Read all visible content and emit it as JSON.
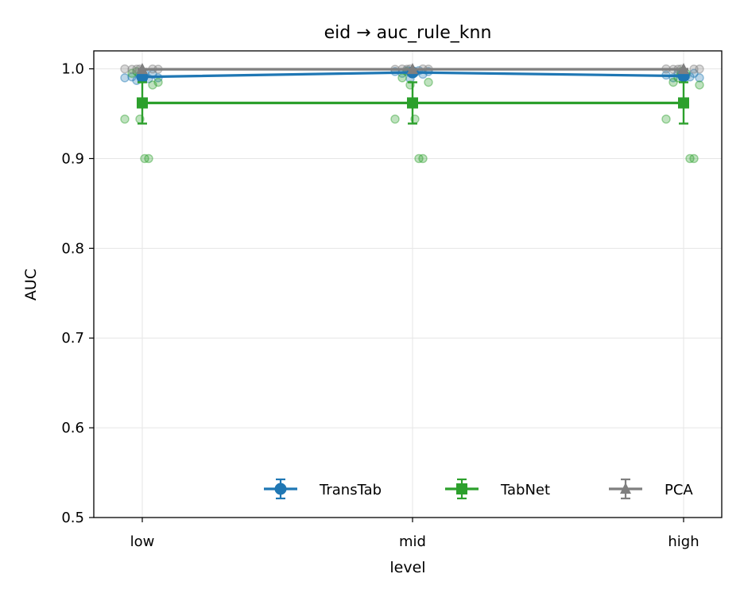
{
  "chart_data": {
    "type": "line",
    "title": "eid → auc_rule_knn",
    "xlabel": "level",
    "ylabel": "AUC",
    "categories": [
      "low",
      "mid",
      "high"
    ],
    "ylim": [
      0.5,
      1.02
    ],
    "yticks": [
      "0.5",
      "0.6",
      "0.7",
      "0.8",
      "0.9",
      "1.0"
    ],
    "grid": true,
    "legend_position": "bottom-right",
    "series": [
      {
        "name": "TransTab",
        "color": "#1f77b4",
        "marker": "circle",
        "values": [
          0.991,
          0.996,
          0.992
        ],
        "err": [
          0.004,
          0.002,
          0.004
        ],
        "points": [
          [
            0.99,
            0.991,
            0.987,
            0.993,
            0.995,
            0.989,
            0.994,
            0.99
          ],
          [
            0.997,
            0.995,
            0.998,
            0.989,
            0.996,
            0.998,
            0.994,
            0.997
          ],
          [
            0.993,
            0.99,
            0.995,
            0.994,
            0.992,
            0.991,
            0.995,
            0.99
          ]
        ]
      },
      {
        "name": "TabNet",
        "color": "#2ca02c",
        "marker": "square",
        "values": [
          0.962,
          0.962,
          0.962
        ],
        "err": [
          0.023,
          0.023,
          0.023
        ],
        "points": [
          [
            0.944,
            0.9,
            0.9,
            0.982,
            0.985,
            0.944,
            0.995,
            0.997
          ],
          [
            0.982,
            0.944,
            0.9,
            0.9,
            0.985,
            0.944,
            0.99,
            0.997
          ],
          [
            0.997,
            0.995,
            0.9,
            0.9,
            0.982,
            0.944,
            0.985,
            0.99
          ]
        ]
      },
      {
        "name": "PCA",
        "color": "#7f7f7f",
        "marker": "triangle",
        "values": [
          0.9995,
          0.9995,
          0.9995
        ],
        "err": [
          0.0005,
          0.0005,
          0.0005
        ],
        "points": [
          [
            0.9998,
            0.9996,
            0.9999,
            0.9994,
            0.9997,
            0.9998
          ],
          [
            0.9999,
            0.9997,
            0.9995,
            0.9998,
            0.9996,
            0.9999
          ],
          [
            0.9997,
            0.9998,
            0.9999,
            0.9995,
            0.9996,
            0.9998
          ]
        ]
      }
    ]
  }
}
